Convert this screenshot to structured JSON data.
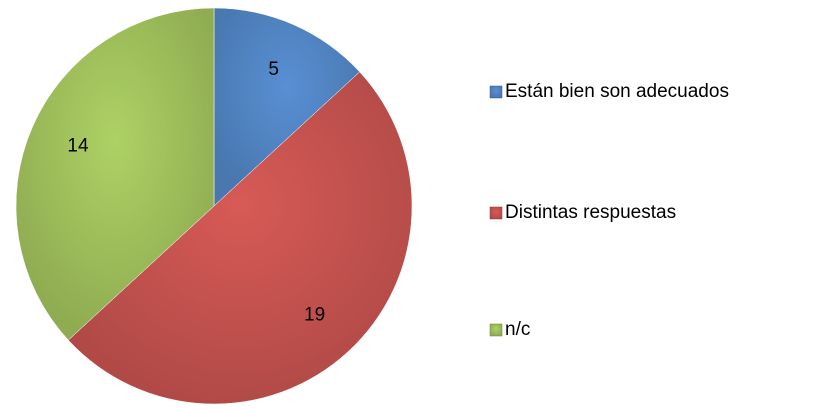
{
  "chart_data": {
    "type": "pie",
    "categories": [
      "Están bien son adecuados",
      "Distintas respuestas",
      "n/c"
    ],
    "values": [
      5,
      19,
      14
    ],
    "colors": [
      "#4f81bd",
      "#c0504d",
      "#9bbb59"
    ],
    "legend": "right"
  }
}
